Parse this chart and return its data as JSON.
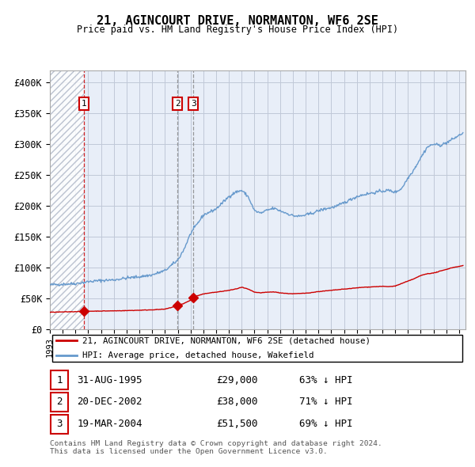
{
  "title": "21, AGINCOURT DRIVE, NORMANTON, WF6 2SE",
  "subtitle": "Price paid vs. HM Land Registry's House Price Index (HPI)",
  "ylim": [
    0,
    420000
  ],
  "yticks": [
    0,
    50000,
    100000,
    150000,
    200000,
    250000,
    300000,
    350000,
    400000
  ],
  "ytick_labels": [
    "£0",
    "£50K",
    "£100K",
    "£150K",
    "£200K",
    "£250K",
    "£300K",
    "£350K",
    "£400K"
  ],
  "xlim_start": 1993.0,
  "xlim_end": 2025.5,
  "background_color": "#e8eef8",
  "hatch_end_year": 1995.65,
  "sale_dates": [
    1995.664,
    2002.968,
    2004.215
  ],
  "sale_prices": [
    29000,
    38000,
    51500
  ],
  "sale_labels": [
    "1",
    "2",
    "3"
  ],
  "legend_line1": "21, AGINCOURT DRIVE, NORMANTON, WF6 2SE (detached house)",
  "legend_line2": "HPI: Average price, detached house, Wakefield",
  "table_entries": [
    [
      "1",
      "31-AUG-1995",
      "£29,000",
      "63% ↓ HPI"
    ],
    [
      "2",
      "20-DEC-2002",
      "£38,000",
      "71% ↓ HPI"
    ],
    [
      "3",
      "19-MAR-2004",
      "£51,500",
      "69% ↓ HPI"
    ]
  ],
  "footer": "Contains HM Land Registry data © Crown copyright and database right 2024.\nThis data is licensed under the Open Government Licence v3.0.",
  "red_color": "#cc0000",
  "blue_color": "#6699cc",
  "grid_color": "#c0c8d8",
  "hatch_color": "#b0b8c8",
  "hpi_years": [
    1993.0,
    1994.0,
    1995.0,
    1995.7,
    1996.0,
    1997.0,
    1998.0,
    1999.0,
    2000.0,
    2001.0,
    2002.0,
    2003.0,
    2003.5,
    2004.0,
    2004.5,
    2005.0,
    2005.5,
    2006.0,
    2006.5,
    2007.0,
    2007.5,
    2008.0,
    2008.5,
    2009.0,
    2009.5,
    2010.0,
    2010.5,
    2011.0,
    2011.5,
    2012.0,
    2012.5,
    2013.0,
    2013.5,
    2014.0,
    2014.5,
    2015.0,
    2015.5,
    2016.0,
    2016.5,
    2017.0,
    2017.5,
    2018.0,
    2018.5,
    2019.0,
    2019.5,
    2020.0,
    2020.5,
    2021.0,
    2021.5,
    2022.0,
    2022.5,
    2023.0,
    2023.5,
    2024.0,
    2024.5,
    2025.3
  ],
  "hpi_prices": [
    72000,
    73000,
    74000,
    76000,
    77000,
    79000,
    80000,
    83000,
    85000,
    88000,
    95000,
    112000,
    130000,
    155000,
    170000,
    185000,
    190000,
    195000,
    205000,
    215000,
    222000,
    225000,
    215000,
    192000,
    188000,
    193000,
    196000,
    192000,
    188000,
    184000,
    183000,
    185000,
    188000,
    192000,
    195000,
    197000,
    200000,
    205000,
    210000,
    215000,
    218000,
    220000,
    222000,
    224000,
    225000,
    222000,
    228000,
    245000,
    260000,
    278000,
    295000,
    300000,
    298000,
    302000,
    308000,
    318000
  ],
  "red_years": [
    1993.0,
    1994.0,
    1995.0,
    1995.664,
    1996.0,
    1997.0,
    1998.0,
    1999.0,
    2000.0,
    2001.0,
    2002.0,
    2002.968,
    2003.5,
    2004.0,
    2004.215,
    2004.5,
    2005.0,
    2005.5,
    2006.0,
    2006.5,
    2007.0,
    2007.5,
    2008.0,
    2008.5,
    2009.0,
    2009.5,
    2010.0,
    2010.5,
    2011.0,
    2011.5,
    2012.0,
    2012.5,
    2013.0,
    2013.5,
    2014.0,
    2014.5,
    2015.0,
    2015.5,
    2016.0,
    2016.5,
    2017.0,
    2017.5,
    2018.0,
    2018.5,
    2019.0,
    2019.5,
    2020.0,
    2020.5,
    2021.0,
    2021.5,
    2022.0,
    2022.5,
    2023.0,
    2023.5,
    2024.0,
    2024.5,
    2025.3
  ],
  "red_prices": [
    27500,
    28000,
    28500,
    29000,
    29200,
    29500,
    29800,
    30200,
    30800,
    31500,
    32500,
    38000,
    42000,
    47000,
    51500,
    54000,
    57000,
    59000,
    60000,
    61500,
    63000,
    65000,
    68000,
    65000,
    60000,
    59000,
    60000,
    60500,
    59000,
    58000,
    57500,
    57800,
    58500,
    59500,
    61000,
    62000,
    63000,
    64000,
    65000,
    66000,
    67000,
    68000,
    68500,
    69000,
    69500,
    69000,
    70000,
    74000,
    78000,
    82000,
    87000,
    90000,
    91000,
    94000,
    97000,
    100000,
    103000
  ]
}
